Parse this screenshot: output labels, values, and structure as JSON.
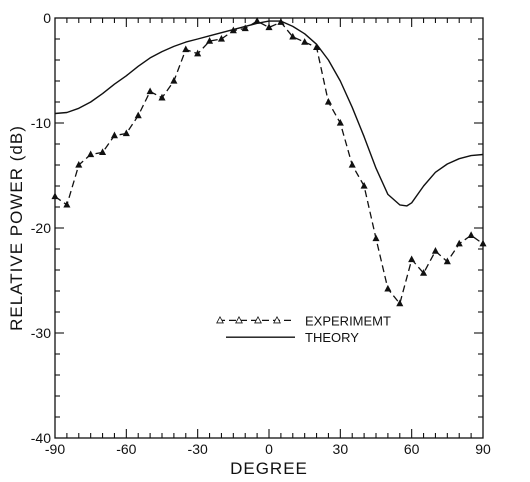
{
  "chart_data": {
    "type": "line",
    "xlabel": "DEGREE",
    "ylabel": "RELATIVE POWER (dB)",
    "xlim": [
      -90,
      90
    ],
    "ylim": [
      -40,
      0
    ],
    "xticks": [
      -90,
      -60,
      -30,
      0,
      30,
      60,
      90
    ],
    "xtick_labels": [
      "-90",
      "-60",
      "-30",
      "0",
      "30",
      "60",
      "90"
    ],
    "yticks": [
      0,
      -10,
      -20,
      -30,
      -40
    ],
    "ytick_labels": [
      "0",
      "-10",
      "-20",
      "-30",
      "-40"
    ],
    "grid": false,
    "legend_position": "center",
    "series": [
      {
        "name": "EXPERIMEMT",
        "style": "dashed-triangle",
        "color": "#111111",
        "x": [
          -90,
          -85,
          -80,
          -75,
          -70,
          -65,
          -60,
          -55,
          -50,
          -45,
          -40,
          -35,
          -30,
          -25,
          -20,
          -15,
          -10,
          -5,
          0,
          5,
          10,
          15,
          20,
          25,
          30,
          35,
          40,
          45,
          50,
          55,
          60,
          65,
          70,
          75,
          80,
          85,
          90
        ],
        "y": [
          -17,
          -17.8,
          -14,
          -13,
          -12.8,
          -11.2,
          -11,
          -9.3,
          -7,
          -7.6,
          -6,
          -3,
          -3.4,
          -2.2,
          -2,
          -1.2,
          -1,
          -0.3,
          -0.9,
          -0.4,
          -1.8,
          -2.3,
          -2.8,
          -8,
          -10,
          -14,
          -16,
          -21,
          -25.8,
          -27.2,
          -23,
          -24.3,
          -22.2,
          -23.2,
          -21.5,
          -20.7,
          -21.5
        ]
      },
      {
        "name": "THEORY",
        "style": "solid",
        "color": "#111111",
        "x": [
          -90,
          -85,
          -80,
          -75,
          -70,
          -65,
          -60,
          -55,
          -50,
          -45,
          -40,
          -35,
          -30,
          -25,
          -20,
          -15,
          -10,
          -5,
          0,
          5,
          10,
          15,
          20,
          25,
          30,
          35,
          40,
          45,
          50,
          55,
          58,
          60,
          65,
          70,
          75,
          80,
          85,
          90
        ],
        "y": [
          -9.1,
          -9.0,
          -8.6,
          -8.0,
          -7.2,
          -6.3,
          -5.5,
          -4.6,
          -3.8,
          -3.2,
          -2.7,
          -2.3,
          -2.0,
          -1.7,
          -1.4,
          -1.1,
          -0.8,
          -0.5,
          -0.3,
          -0.3,
          -0.8,
          -1.5,
          -2.5,
          -4.0,
          -6.0,
          -8.5,
          -11.3,
          -14.3,
          -16.8,
          -17.8,
          -17.9,
          -17.6,
          -16.0,
          -14.7,
          -13.9,
          -13.4,
          -13.1,
          -13.0
        ]
      }
    ]
  }
}
